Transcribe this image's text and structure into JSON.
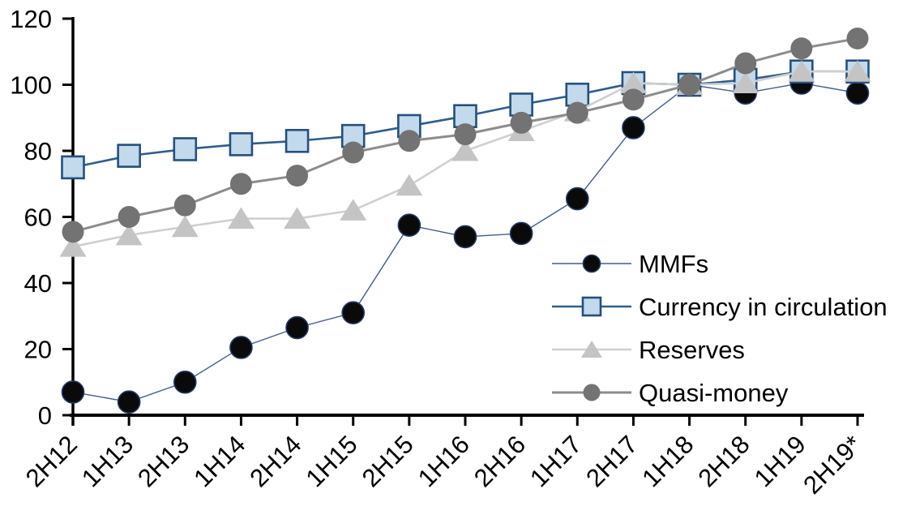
{
  "chart_data": {
    "type": "line",
    "title": "",
    "xlabel": "",
    "ylabel": "",
    "categories": [
      "2H12",
      "1H13",
      "2H13",
      "1H14",
      "2H14",
      "1H15",
      "2H15",
      "1H16",
      "2H16",
      "1H17",
      "2H17",
      "1H18",
      "2H18",
      "1H19",
      "2H19*"
    ],
    "series": [
      {
        "name": "MMFs",
        "marker": "circle",
        "marker_fill": "#0a0a0a",
        "marker_edge": "#1f3864",
        "marker_edge_width": 1.6,
        "line_color": "#3f5e8c",
        "line_width": 1.4,
        "values": [
          7,
          4,
          10,
          20.5,
          26.5,
          31,
          57.5,
          54,
          55,
          65.5,
          87,
          100,
          97.5,
          100.5,
          97.5
        ]
      },
      {
        "name": "Currency in circulation",
        "marker": "square",
        "marker_fill": "#c3d9ec",
        "marker_edge": "#24507f",
        "marker_edge_width": 2.6,
        "line_color": "#2e5e8e",
        "line_width": 2.6,
        "values": [
          75,
          78.5,
          80.5,
          82,
          83,
          84.5,
          87.5,
          90.5,
          94,
          97,
          100.5,
          100,
          101.5,
          104,
          104
        ]
      },
      {
        "name": "Reserves",
        "marker": "triangle",
        "marker_fill": "#c4c4c4",
        "marker_edge": "none",
        "marker_edge_width": 0,
        "line_color": "#cfcfcf",
        "line_width": 2.6,
        "values": [
          51,
          54.5,
          57,
          59.5,
          59.5,
          62,
          69.5,
          80,
          86,
          92,
          100.5,
          100,
          100.5,
          104,
          104
        ]
      },
      {
        "name": "Quasi-money",
        "marker": "circle",
        "marker_fill": "#737373",
        "marker_edge": "none",
        "marker_edge_width": 0,
        "line_color": "#8c8c8c",
        "line_width": 3,
        "values": [
          55.5,
          60,
          63.5,
          70,
          72.5,
          79.5,
          83,
          85,
          88.5,
          91.5,
          95.5,
          100,
          106.5,
          111,
          114
        ]
      }
    ],
    "ylim": [
      0,
      120
    ],
    "yticks": [
      0,
      20,
      40,
      60,
      80,
      100,
      120
    ],
    "grid": false,
    "axis_color": "#000000",
    "legend_position": "inside-right",
    "legend_entries": [
      "MMFs",
      "Currency in circulation",
      "Reserves",
      "Quasi-money"
    ]
  }
}
